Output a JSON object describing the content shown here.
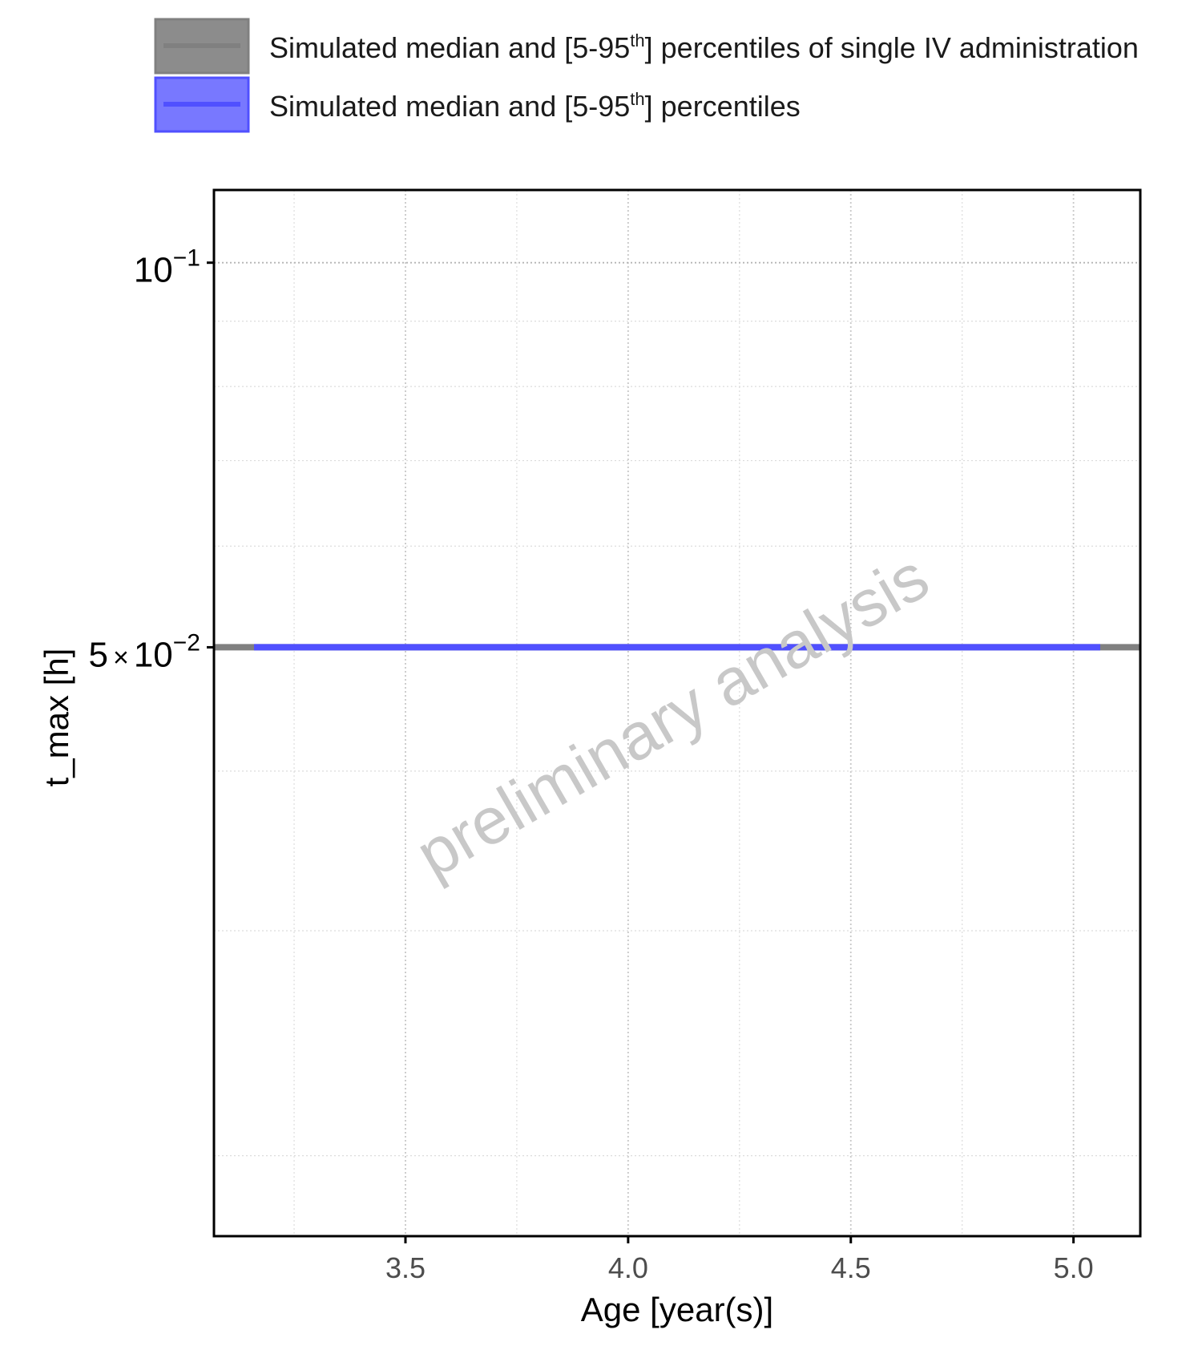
{
  "chart_data": {
    "type": "line",
    "x_scale": "linear",
    "y_scale": "log",
    "xlabel": "Age [year(s)]",
    "ylabel": "t_max [h]",
    "xlim": [
      3.07,
      5.15
    ],
    "ylim": [
      0.0173,
      0.114
    ],
    "x_ticks": [
      {
        "value": 3.5,
        "label": "3.5"
      },
      {
        "value": 4.0,
        "label": "4.0"
      },
      {
        "value": 4.5,
        "label": "4.5"
      },
      {
        "value": 5.0,
        "label": "5.0"
      }
    ],
    "y_ticks": [
      {
        "value": 0.1,
        "mantissa": "",
        "base": "10",
        "exponent": "−1"
      },
      {
        "value": 0.05,
        "mantissa": "5",
        "times": "×",
        "base": "10",
        "exponent": "−2"
      }
    ],
    "grid": true,
    "legend_position": "top",
    "series": [
      {
        "name_parts": [
          "Simulated median and [5-95",
          "th",
          "] percentiles of single IV administration"
        ],
        "color": "#808080",
        "x": [
          3.07,
          5.15
        ],
        "median": [
          0.05,
          0.05
        ],
        "p5": [
          0.05,
          0.05
        ],
        "p95": [
          0.05,
          0.05
        ]
      },
      {
        "name_parts": [
          "Simulated median and [5-95",
          "th",
          "] percentiles"
        ],
        "color": "#5050ff",
        "x": [
          3.16,
          5.06
        ],
        "median": [
          0.05,
          0.05
        ],
        "p5": [
          0.05,
          0.05
        ],
        "p95": [
          0.05,
          0.05
        ]
      }
    ],
    "watermark": "preliminary analysis"
  }
}
